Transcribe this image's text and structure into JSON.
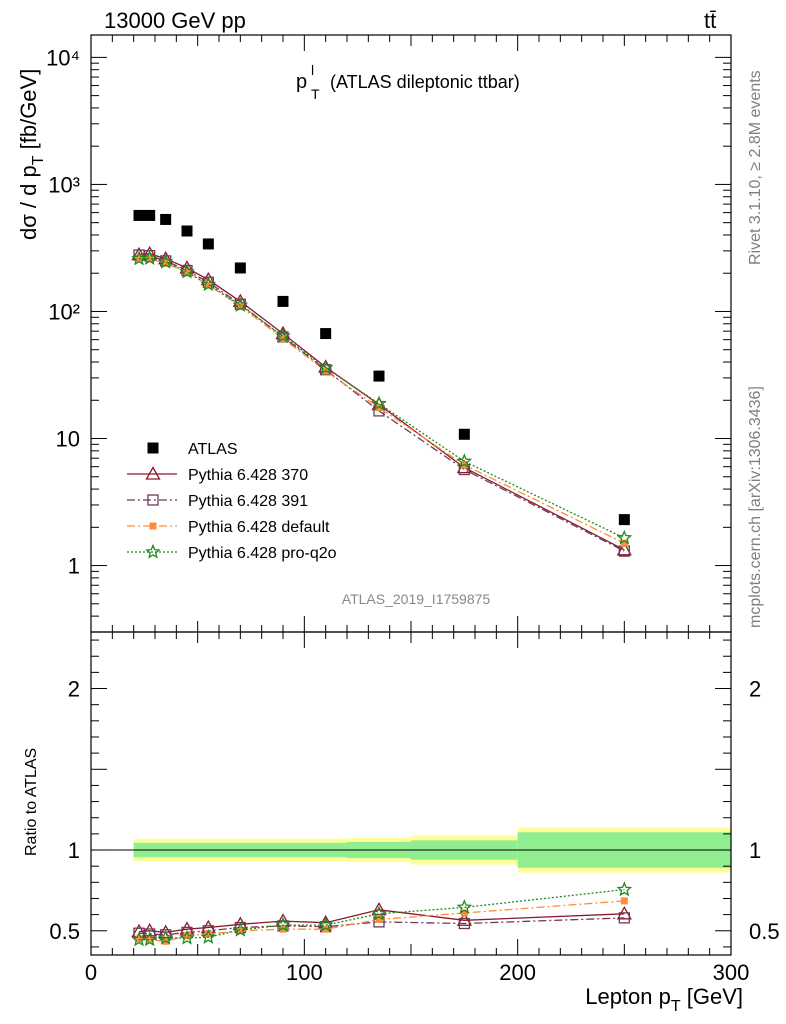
{
  "header": {
    "energy_label": "13000 GeV pp",
    "process_label": "tt̄"
  },
  "side_labels": {
    "rivet": "Rivet 3.1.10, ≥ 2.8M events",
    "mcplots": "mcplots.cern.ch [arXiv:1306.3436]"
  },
  "plot_title": {
    "main": "p",
    "sup": "l",
    "sub": "T",
    "rest": "(ATLAS dileptonic ttbar)"
  },
  "analysis_id": "ATLAS_2019_I1759875",
  "colors": {
    "ATLAS": "#000000",
    "Pythia 6.428 370": "#8b1a2b",
    "Pythia 6.428 391": "#6e3a5a",
    "Pythia 6.428 default": "#ff8c3a",
    "Pythia 6.428 pro-q2o": "#1e8a1e",
    "band_inner": "#90ee90",
    "band_outer": "#ffff99"
  },
  "chart_data": [
    {
      "type": "scatter",
      "panel": "main",
      "title": "p_T^l (ATLAS dileptonic ttbar)",
      "xlabel": "Lepton p_T [GeV]",
      "ylabel": "dσ / d p_T [fb/GeV]",
      "yscale": "log",
      "xlim": [
        0,
        300
      ],
      "ylim": [
        0.3,
        15000
      ],
      "yticks": [
        {
          "value": 1,
          "label": "1"
        },
        {
          "value": 10,
          "label": "10"
        },
        {
          "value": 100,
          "label": "10²"
        },
        {
          "value": 1000,
          "label": "10³"
        },
        {
          "value": 10000,
          "label": "10⁴"
        }
      ],
      "legend_position": "lower-left",
      "x": [
        22.5,
        27.5,
        35,
        45,
        55,
        70,
        90,
        110,
        135,
        175,
        250
      ],
      "series": [
        {
          "name": "ATLAS",
          "marker": "square",
          "line": "none",
          "values": [
            570,
            570,
            530,
            430,
            340,
            220,
            120,
            67,
            31,
            10.8,
            2.3
          ]
        },
        {
          "name": "Pythia 6.428 370",
          "marker": "triangle",
          "line": "solid",
          "values": [
            280,
            285,
            260,
            220,
            178,
            120,
            67,
            36.5,
            18.5,
            5.9,
            1.33
          ]
        },
        {
          "name": "Pythia 6.428 391",
          "marker": "open-square",
          "line": "dashdot",
          "values": [
            278,
            275,
            250,
            210,
            170,
            114,
            63,
            34.8,
            16.5,
            5.7,
            1.3
          ]
        },
        {
          "name": "Pythia 6.428 default",
          "marker": "filled-square",
          "line": "dashdot",
          "values": [
            262,
            260,
            240,
            203,
            162,
            110,
            61,
            34.0,
            17.5,
            6.2,
            1.5
          ]
        },
        {
          "name": "Pythia 6.428 pro-q2o",
          "marker": "star",
          "line": "dotted",
          "values": [
            260,
            262,
            245,
            205,
            163,
            112,
            64,
            36.0,
            18.8,
            6.6,
            1.65
          ]
        }
      ]
    },
    {
      "type": "line",
      "panel": "ratio",
      "xlabel": "Lepton p_T [GeV]",
      "ylabel": "Ratio to ATLAS",
      "xlim": [
        0,
        300
      ],
      "ylim": [
        0.35,
        2.35
      ],
      "xticks": [
        0,
        100,
        200,
        300
      ],
      "yticks": [
        0.5,
        1,
        2
      ],
      "x": [
        22.5,
        27.5,
        35,
        45,
        55,
        70,
        90,
        110,
        135,
        175,
        250
      ],
      "band_bins": [
        {
          "x0": 20,
          "x1": 30,
          "inner": [
            0.955,
            1.045
          ],
          "outer": [
            0.93,
            1.07
          ]
        },
        {
          "x0": 30,
          "x1": 120,
          "inner": [
            0.955,
            1.045
          ],
          "outer": [
            0.93,
            1.07
          ]
        },
        {
          "x0": 120,
          "x1": 150,
          "inner": [
            0.95,
            1.05
          ],
          "outer": [
            0.925,
            1.075
          ]
        },
        {
          "x0": 150,
          "x1": 200,
          "inner": [
            0.94,
            1.06
          ],
          "outer": [
            0.91,
            1.09
          ]
        },
        {
          "x0": 200,
          "x1": 300,
          "inner": [
            0.89,
            1.11
          ],
          "outer": [
            0.86,
            1.14
          ]
        }
      ],
      "series": [
        {
          "name": "Pythia 6.428 370",
          "values": [
            0.495,
            0.5,
            0.49,
            0.51,
            0.52,
            0.54,
            0.56,
            0.55,
            0.63,
            0.565,
            0.605
          ]
        },
        {
          "name": "Pythia 6.428 391",
          "values": [
            0.485,
            0.48,
            0.475,
            0.49,
            0.5,
            0.52,
            0.53,
            0.525,
            0.555,
            0.545,
            0.58
          ]
        },
        {
          "name": "Pythia 6.428 default",
          "values": [
            0.45,
            0.445,
            0.435,
            0.47,
            0.48,
            0.5,
            0.51,
            0.51,
            0.57,
            0.61,
            0.685
          ]
        },
        {
          "name": "Pythia 6.428 pro-q2o",
          "values": [
            0.445,
            0.445,
            0.455,
            0.455,
            0.46,
            0.505,
            0.535,
            0.535,
            0.605,
            0.645,
            0.755
          ]
        }
      ]
    }
  ]
}
